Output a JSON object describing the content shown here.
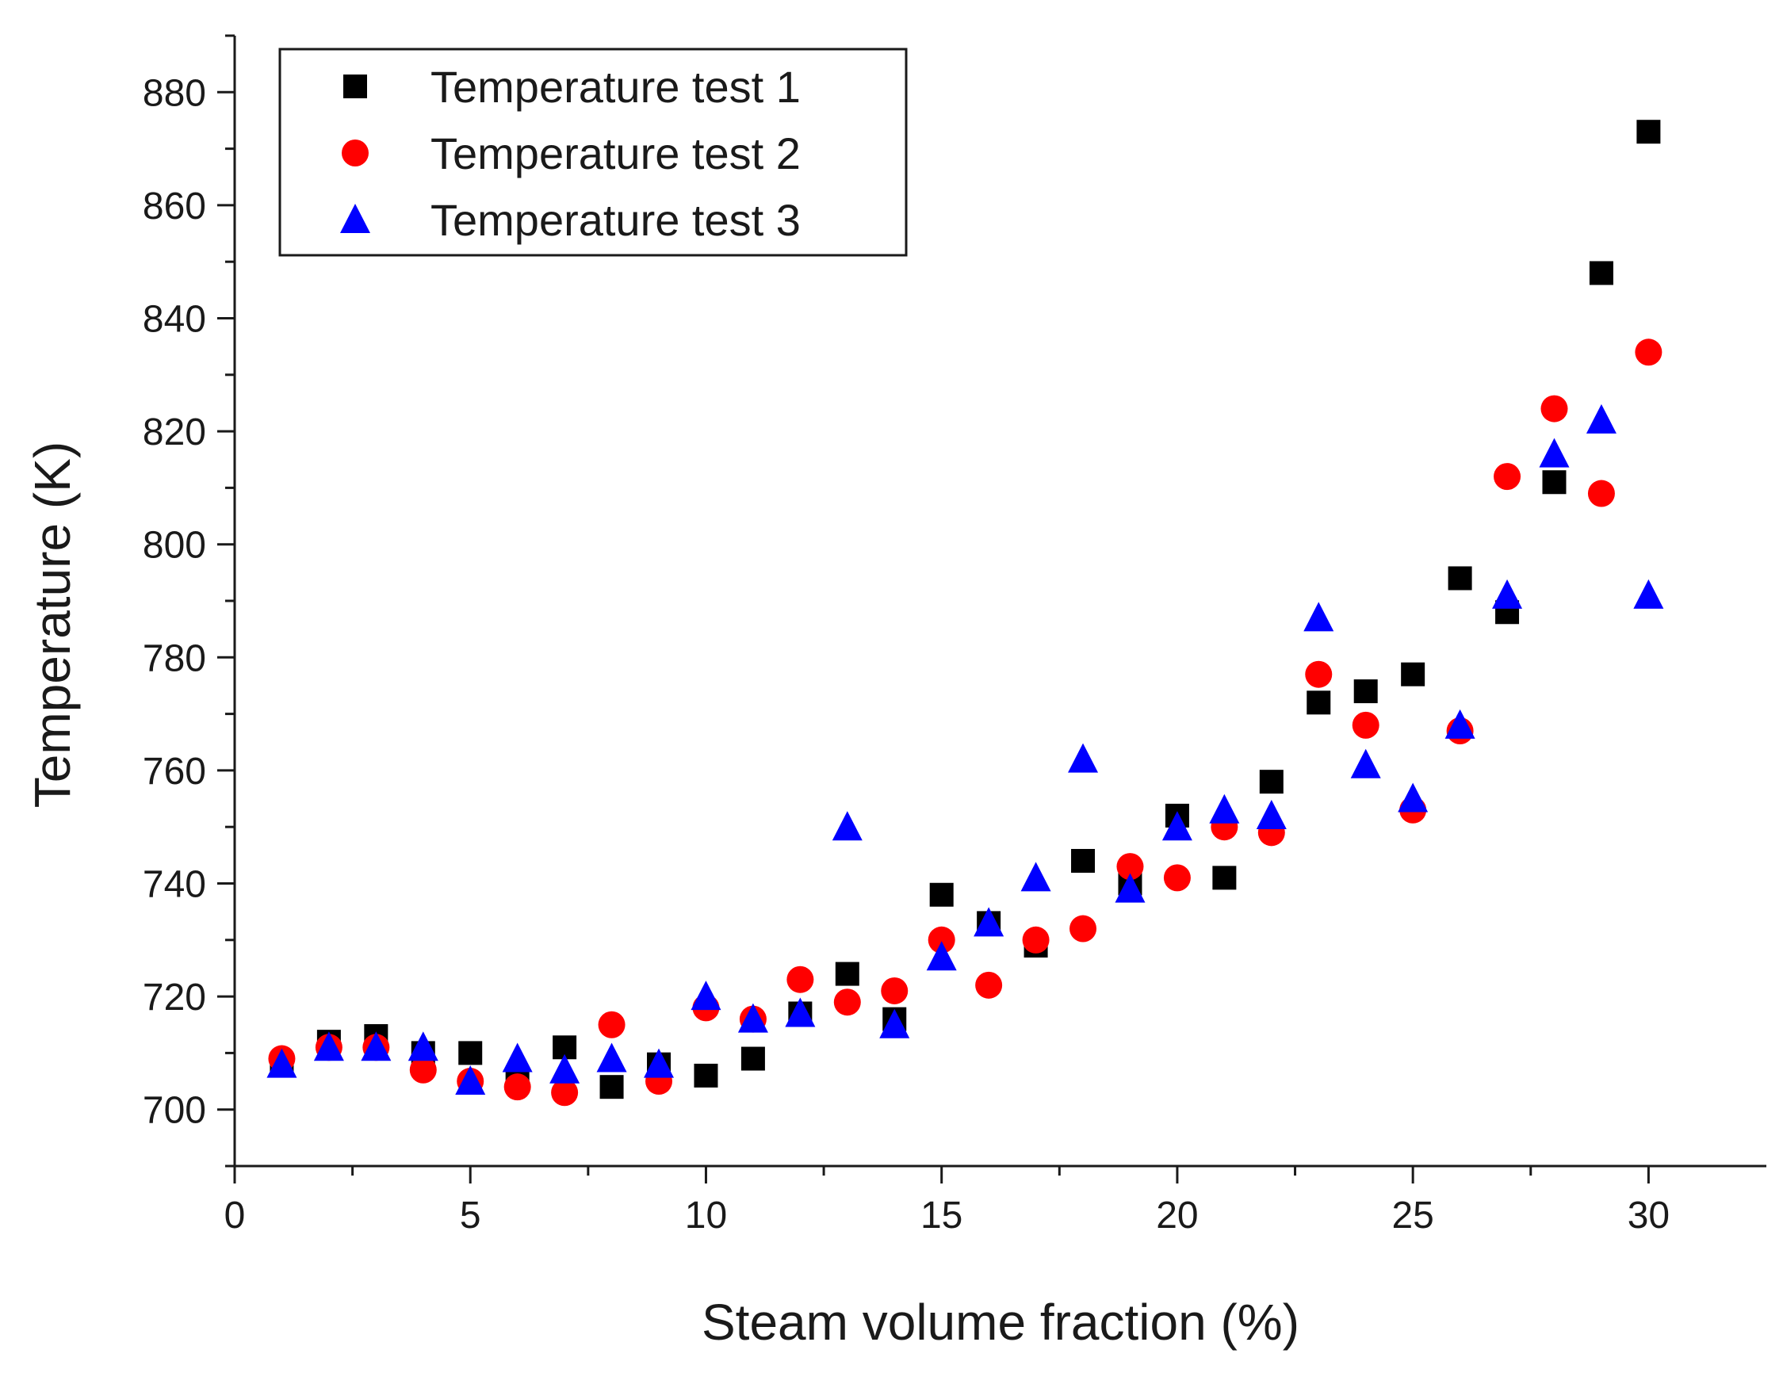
{
  "chart_data": {
    "type": "scatter",
    "title": "",
    "xlabel": "Steam volume fraction (%)",
    "ylabel": "Temperature (K)",
    "xlim": [
      0,
      32.5
    ],
    "ylim": [
      690,
      890
    ],
    "xticks": [
      0,
      5,
      10,
      15,
      20,
      25,
      30
    ],
    "yticks": [
      700,
      720,
      740,
      760,
      780,
      800,
      820,
      840,
      860,
      880
    ],
    "grid": false,
    "legend_position": "top-left",
    "series": [
      {
        "name": "Temperature test 1",
        "marker": "square",
        "color": "#000000",
        "x": [
          1,
          2,
          3,
          4,
          5,
          6,
          7,
          8,
          9,
          10,
          11,
          12,
          13,
          14,
          15,
          16,
          17,
          18,
          19,
          20,
          21,
          22,
          23,
          24,
          25,
          26,
          27,
          28,
          29,
          30
        ],
        "y": [
          708,
          712,
          713,
          710,
          710,
          705,
          711,
          704,
          708,
          706,
          709,
          717,
          724,
          716,
          738,
          733,
          729,
          744,
          740,
          752,
          741,
          758,
          772,
          774,
          777,
          794,
          788,
          811,
          848,
          873
        ]
      },
      {
        "name": "Temperature test 2",
        "marker": "circle",
        "color": "#ff0000",
        "x": [
          1,
          2,
          3,
          4,
          5,
          6,
          7,
          8,
          9,
          10,
          11,
          12,
          13,
          14,
          15,
          16,
          17,
          18,
          19,
          20,
          21,
          22,
          23,
          24,
          25,
          26,
          27,
          28,
          29,
          30
        ],
        "y": [
          709,
          711,
          711,
          707,
          705,
          704,
          703,
          715,
          705,
          718,
          716,
          723,
          719,
          721,
          730,
          722,
          730,
          732,
          743,
          741,
          750,
          749,
          777,
          768,
          753,
          767,
          812,
          824,
          809,
          834
        ]
      },
      {
        "name": "Temperature test 3",
        "marker": "triangle",
        "color": "#0000ff",
        "x": [
          1,
          2,
          3,
          4,
          5,
          6,
          7,
          8,
          9,
          10,
          11,
          12,
          13,
          14,
          15,
          16,
          17,
          18,
          19,
          20,
          21,
          22,
          23,
          24,
          25,
          26,
          27,
          28,
          29,
          30
        ],
        "y": [
          708,
          711,
          711,
          711,
          705,
          709,
          707,
          709,
          708,
          720,
          716,
          717,
          750,
          715,
          727,
          733,
          741,
          762,
          739,
          750,
          753,
          752,
          787,
          761,
          755,
          768,
          791,
          816,
          822,
          791
        ]
      }
    ]
  }
}
